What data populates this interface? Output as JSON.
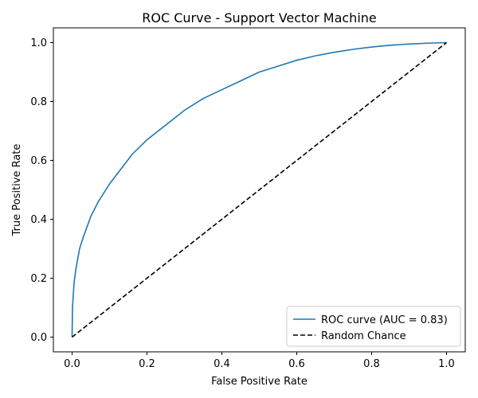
{
  "chart_data": {
    "type": "line",
    "title": "ROC Curve - Support Vector Machine",
    "xlabel": "False Positive Rate",
    "ylabel": "True Positive Rate",
    "xlim": [
      -0.05,
      1.05
    ],
    "ylim": [
      -0.05,
      1.05
    ],
    "xticks": [
      "0.0",
      "0.2",
      "0.4",
      "0.6",
      "0.8",
      "1.0"
    ],
    "yticks": [
      "0.0",
      "0.2",
      "0.4",
      "0.6",
      "0.8",
      "1.0"
    ],
    "grid": false,
    "legend_position": "lower-right",
    "series": [
      {
        "name": "ROC curve (AUC = 0.83)",
        "color": "#1f77b4",
        "style": "solid",
        "x": [
          0.0,
          0.001,
          0.005,
          0.01,
          0.02,
          0.03,
          0.05,
          0.07,
          0.1,
          0.13,
          0.16,
          0.2,
          0.25,
          0.3,
          0.35,
          0.4,
          0.45,
          0.5,
          0.55,
          0.6,
          0.65,
          0.7,
          0.75,
          0.8,
          0.85,
          0.9,
          0.95,
          1.0
        ],
        "y": [
          0.0,
          0.1,
          0.18,
          0.23,
          0.3,
          0.34,
          0.41,
          0.46,
          0.52,
          0.57,
          0.62,
          0.67,
          0.72,
          0.77,
          0.81,
          0.84,
          0.87,
          0.9,
          0.92,
          0.94,
          0.955,
          0.967,
          0.977,
          0.985,
          0.991,
          0.995,
          0.998,
          1.0
        ]
      },
      {
        "name": "Random Chance",
        "color": "#000000",
        "style": "dashed",
        "x": [
          0.0,
          1.0
        ],
        "y": [
          0.0,
          1.0
        ]
      }
    ]
  }
}
